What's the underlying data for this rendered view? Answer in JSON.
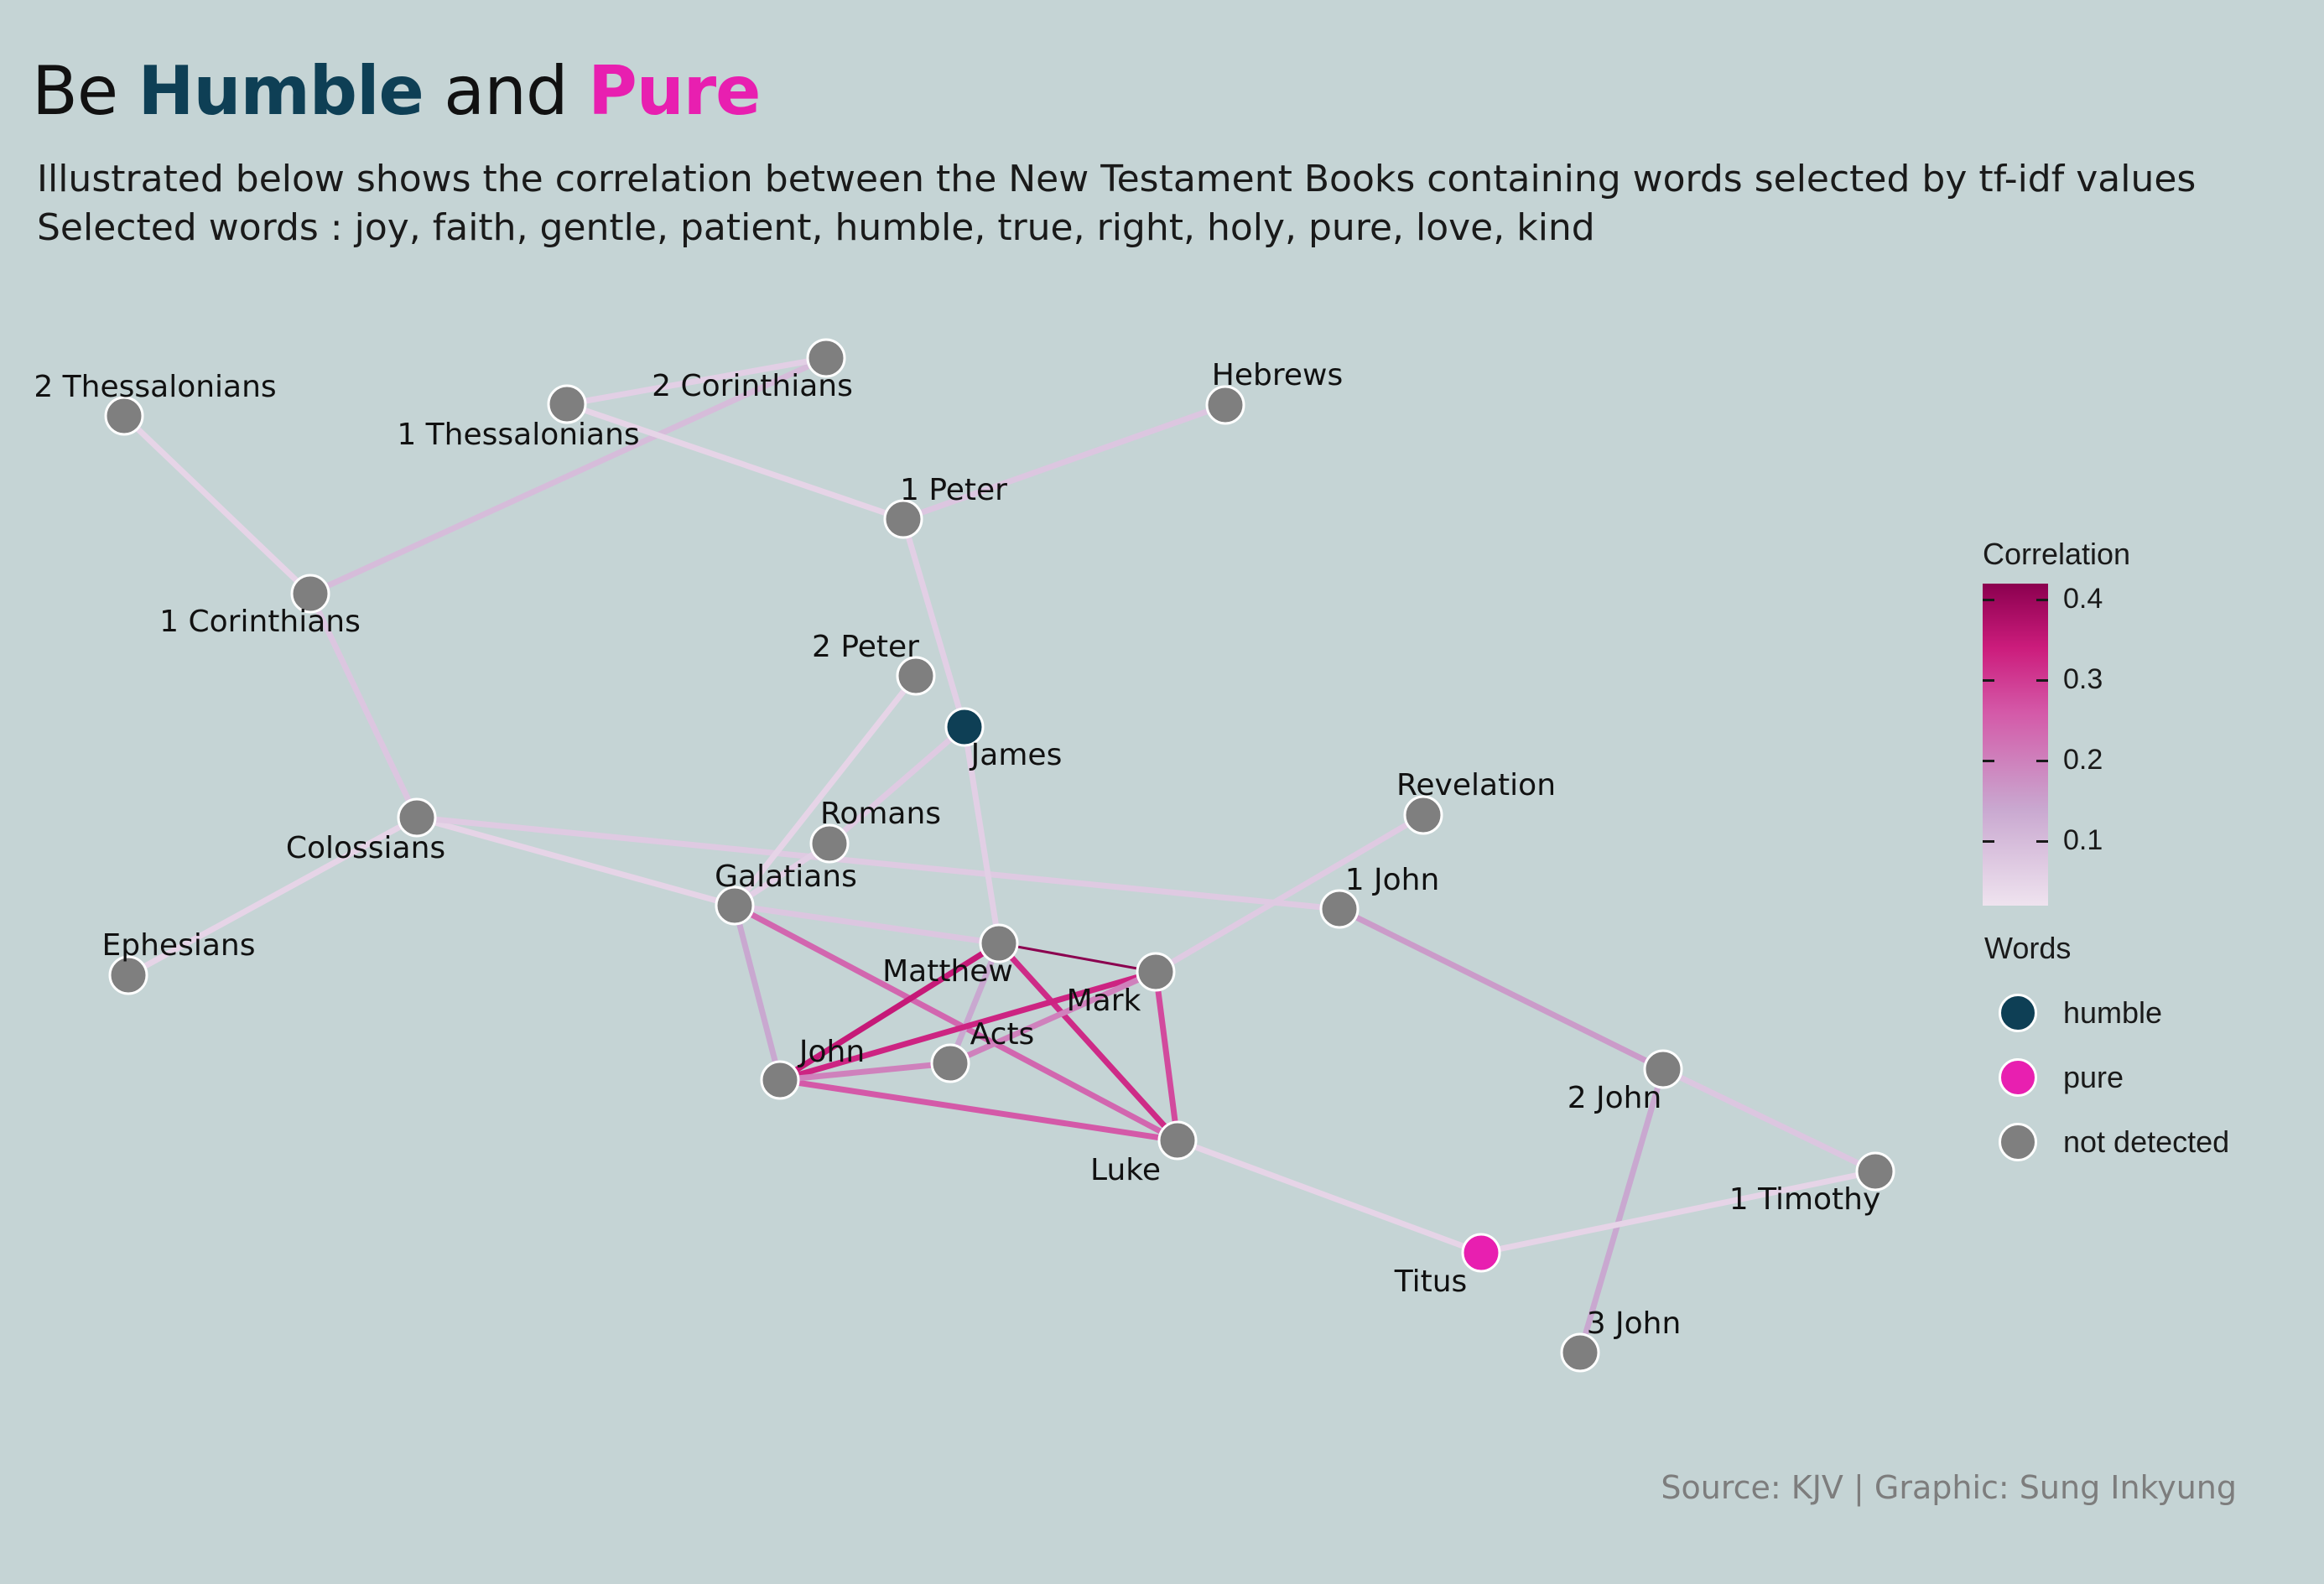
{
  "header": {
    "title_prefix": "Be ",
    "title_humble": "Humble",
    "title_mid": " and ",
    "title_pure": "Pure",
    "subtitle_line1": "Illustrated below shows the correlation between the New Testament Books containing words selected by tf-idf values",
    "subtitle_line2": "Selected words : joy, faith, gentle, patient, humble, true, right, holy, pure, love, kind"
  },
  "caption": "Source: KJV | Graphic: Sung Inkyung",
  "colors": {
    "humble": "#0e3f55",
    "pure": "#e81fb0",
    "not_detected": "#7f7f7f",
    "background": "#c5d4d5"
  },
  "legend": {
    "correlation_title": "Correlation",
    "ticks": [
      "0.4",
      "0.3",
      "0.2",
      "0.1"
    ],
    "words_title": "Words",
    "words": [
      {
        "label": "humble",
        "key": "humble"
      },
      {
        "label": "pure",
        "key": "pure"
      },
      {
        "label": "not detected",
        "key": "not_detected"
      }
    ]
  },
  "nodes": [
    {
      "id": "2 Thessalonians",
      "label": "2 Thessalonians",
      "word": "not_detected"
    },
    {
      "id": "1 Thessalonians",
      "label": "1 Thessalonians",
      "word": "not_detected"
    },
    {
      "id": "2 Corinthians",
      "label": "2 Corinthians",
      "word": "not_detected"
    },
    {
      "id": "Hebrews",
      "label": "Hebrews",
      "word": "not_detected"
    },
    {
      "id": "1 Peter",
      "label": "1 Peter",
      "word": "not_detected"
    },
    {
      "id": "1 Corinthians",
      "label": "1 Corinthians",
      "word": "not_detected"
    },
    {
      "id": "2 Peter",
      "label": "2 Peter",
      "word": "not_detected"
    },
    {
      "id": "James",
      "label": "James",
      "word": "humble"
    },
    {
      "id": "Colossians",
      "label": "Colossians",
      "word": "not_detected"
    },
    {
      "id": "Romans",
      "label": "Romans",
      "word": "not_detected"
    },
    {
      "id": "Revelation",
      "label": "Revelation",
      "word": "not_detected"
    },
    {
      "id": "Galatians",
      "label": "Galatians",
      "word": "not_detected"
    },
    {
      "id": "1 John",
      "label": "1 John",
      "word": "not_detected"
    },
    {
      "id": "Ephesians",
      "label": "Ephesians",
      "word": "not_detected"
    },
    {
      "id": "Matthew",
      "label": "Matthew",
      "word": "not_detected"
    },
    {
      "id": "Mark",
      "label": "Mark",
      "word": "not_detected"
    },
    {
      "id": "Acts",
      "label": "Acts",
      "word": "not_detected"
    },
    {
      "id": "John",
      "label": "John",
      "word": "not_detected"
    },
    {
      "id": "2 John",
      "label": "2 John",
      "word": "not_detected"
    },
    {
      "id": "Luke",
      "label": "Luke",
      "word": "not_detected"
    },
    {
      "id": "1 Timothy",
      "label": "1 Timothy",
      "word": "not_detected"
    },
    {
      "id": "Titus",
      "label": "Titus",
      "word": "pure"
    },
    {
      "id": "3 John",
      "label": "3 John",
      "word": "not_detected"
    }
  ],
  "edges": [
    {
      "source": "2 Thessalonians",
      "target": "1 Corinthians",
      "correlation": 0.03
    },
    {
      "source": "1 Corinthians",
      "target": "2 Corinthians",
      "correlation": 0.08
    },
    {
      "source": "1 Thessalonians",
      "target": "2 Corinthians",
      "correlation": 0.04
    },
    {
      "source": "1 Thessalonians",
      "target": "1 Peter",
      "correlation": 0.03
    },
    {
      "source": "1 Peter",
      "target": "Hebrews",
      "correlation": 0.06
    },
    {
      "source": "1 Peter",
      "target": "James",
      "correlation": 0.04
    },
    {
      "source": "1 Corinthians",
      "target": "Colossians",
      "correlation": 0.06
    },
    {
      "source": "Colossians",
      "target": "Ephesians",
      "correlation": 0.03
    },
    {
      "source": "Colossians",
      "target": "Galatians",
      "correlation": 0.03
    },
    {
      "source": "Colossians",
      "target": "1 John",
      "correlation": 0.05
    },
    {
      "source": "2 Peter",
      "target": "Galatians",
      "correlation": 0.03
    },
    {
      "source": "James",
      "target": "Romans",
      "correlation": 0.05
    },
    {
      "source": "James",
      "target": "Matthew",
      "correlation": 0.04
    },
    {
      "source": "Romans",
      "target": "Galatians",
      "correlation": 0.04
    },
    {
      "source": "Galatians",
      "target": "Matthew",
      "correlation": 0.06
    },
    {
      "source": "Galatians",
      "target": "John",
      "correlation": 0.12
    },
    {
      "source": "Galatians",
      "target": "Luke",
      "correlation": 0.22
    },
    {
      "source": "Matthew",
      "target": "Mark",
      "correlation": 0.42
    },
    {
      "source": "Matthew",
      "target": "John",
      "correlation": 0.33
    },
    {
      "source": "Matthew",
      "target": "Luke",
      "correlation": 0.3
    },
    {
      "source": "Matthew",
      "target": "Acts",
      "correlation": 0.12
    },
    {
      "source": "Mark",
      "target": "John",
      "correlation": 0.31
    },
    {
      "source": "Mark",
      "target": "Luke",
      "correlation": 0.26
    },
    {
      "source": "Mark",
      "target": "Acts",
      "correlation": 0.18
    },
    {
      "source": "Mark",
      "target": "Revelation",
      "correlation": 0.05
    },
    {
      "source": "John",
      "target": "Luke",
      "correlation": 0.24
    },
    {
      "source": "John",
      "target": "Acts",
      "correlation": 0.18
    },
    {
      "source": "Luke",
      "target": "Titus",
      "correlation": 0.03
    },
    {
      "source": "1 John",
      "target": "2 John",
      "correlation": 0.14
    },
    {
      "source": "2 John",
      "target": "1 Timothy",
      "correlation": 0.06
    },
    {
      "source": "2 John",
      "target": "3 John",
      "correlation": 0.12
    },
    {
      "source": "Titus",
      "target": "1 Timothy",
      "correlation": 0.03
    }
  ]
}
